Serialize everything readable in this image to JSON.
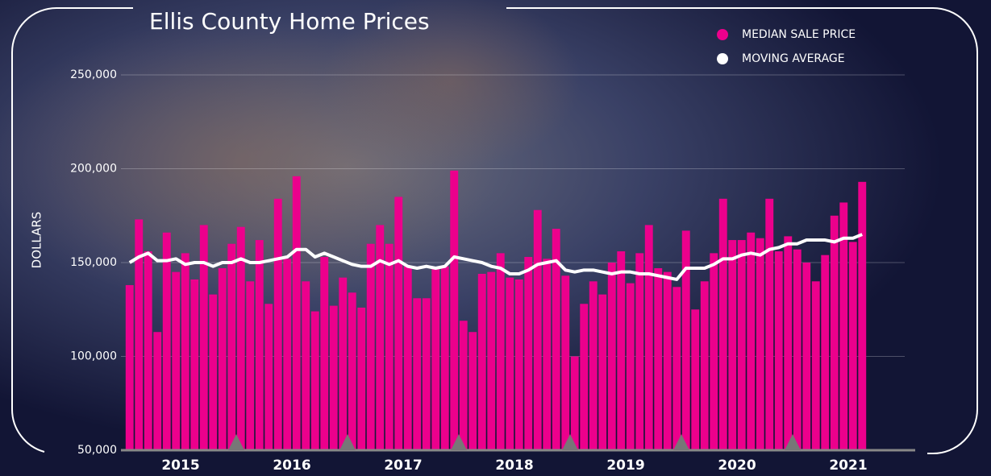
{
  "chart_data": {
    "type": "bar-line",
    "title": "Ellis County Home Prices",
    "y_label": "DOLLARS",
    "groups": [
      "2015",
      "2016",
      "2017",
      "2018",
      "2019",
      "2020",
      "2021"
    ],
    "series": [
      {
        "name": "MEDIAN SALE PRICE",
        "type": "bar",
        "color": "#ec008c",
        "values": [
          138000,
          173000,
          156000,
          113000,
          166000,
          145000,
          155000,
          141000,
          170000,
          133000,
          147000,
          160000,
          169000,
          140000,
          162000,
          128000,
          184000,
          152000,
          196000,
          140000,
          124000,
          153000,
          127000,
          142000,
          134000,
          126000,
          160000,
          170000,
          160000,
          185000,
          148000,
          131000,
          131000,
          147000,
          148000,
          199000,
          119000,
          113000,
          144000,
          145000,
          155000,
          142000,
          141000,
          153000,
          178000,
          152000,
          168000,
          143000,
          100000,
          128000,
          140000,
          133000,
          150000,
          156000,
          139000,
          155000,
          170000,
          147000,
          145000,
          137000,
          167000,
          125000,
          140000,
          155000,
          184000,
          162000,
          162000,
          166000,
          163000,
          184000,
          156000,
          164000,
          157000,
          150000,
          140000,
          154000,
          175000,
          182000,
          161000,
          193000
        ]
      },
      {
        "name": "MOVING AVERAGE",
        "type": "line",
        "color": "#ffffff",
        "values": [
          150000,
          153000,
          155000,
          151000,
          151000,
          152000,
          149000,
          150000,
          150000,
          148000,
          150000,
          150000,
          152000,
          150000,
          150000,
          151000,
          152000,
          153000,
          157000,
          157000,
          153000,
          155000,
          153000,
          151000,
          149000,
          148000,
          148000,
          151000,
          149000,
          151000,
          148000,
          147000,
          148000,
          147000,
          148000,
          153000,
          152000,
          151000,
          150000,
          148000,
          147000,
          144000,
          144000,
          146000,
          149000,
          150000,
          151000,
          146000,
          145000,
          146000,
          146000,
          145000,
          144000,
          145000,
          145000,
          144000,
          144000,
          143000,
          142000,
          141000,
          147000,
          147000,
          147000,
          149000,
          152000,
          152000,
          154000,
          155000,
          154000,
          157000,
          158000,
          160000,
          160000,
          162000,
          162000,
          162000,
          161000,
          163000,
          163000,
          165000
        ]
      }
    ],
    "ylim": [
      50000,
      250000
    ],
    "yticks": [
      {
        "value": 50000,
        "label": "50,000"
      },
      {
        "value": 100000,
        "label": "100,000"
      },
      {
        "value": 150000,
        "label": "150,000"
      },
      {
        "value": 200000,
        "label": "200,000"
      },
      {
        "value": 250000,
        "label": "250,000"
      }
    ],
    "grid": true,
    "legend": "top-right"
  }
}
